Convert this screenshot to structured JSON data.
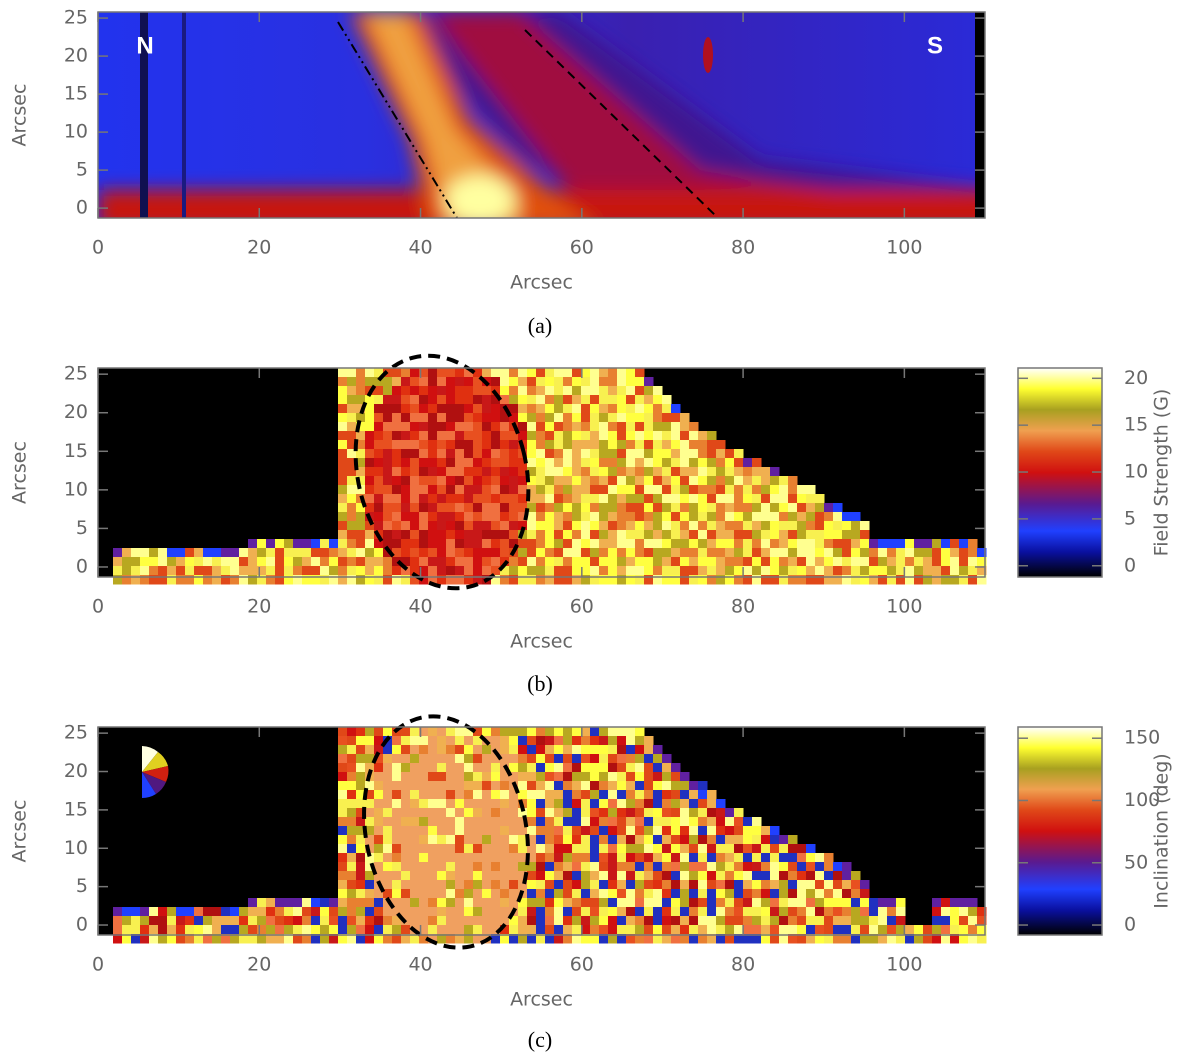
{
  "chart_data": [
    {
      "type": "heatmap",
      "caption": "(a)",
      "xlabel": "Arcsec",
      "ylabel": "Arcsec",
      "xlim": [
        0,
        110
      ],
      "xticks": [
        0,
        20,
        40,
        60,
        80,
        100
      ],
      "ylim": [
        -1.3,
        25.8
      ],
      "yticks": [
        0,
        5,
        10,
        15,
        20,
        25
      ],
      "annotations": [
        "N",
        "S"
      ]
    },
    {
      "type": "heatmap",
      "caption": "(b)",
      "xlabel": "Arcsec",
      "ylabel": "Arcsec",
      "xlim": [
        0,
        110
      ],
      "xticks": [
        0,
        20,
        40,
        60,
        80,
        100
      ],
      "ylim": [
        -1.3,
        25.8
      ],
      "yticks": [
        0,
        5,
        10,
        15,
        20,
        25
      ],
      "colorbar": {
        "label": "Field Strength (G)",
        "lim": [
          -1.2,
          21.1
        ],
        "ticks": [
          0,
          5,
          10,
          15,
          20
        ]
      }
    },
    {
      "type": "heatmap",
      "caption": "(c)",
      "xlabel": "Arcsec",
      "ylabel": "Arcsec",
      "xlim": [
        0,
        110
      ],
      "xticks": [
        0,
        20,
        40,
        60,
        80,
        100
      ],
      "ylim": [
        -1.3,
        25.8
      ],
      "yticks": [
        0,
        5,
        10,
        15,
        20,
        25
      ],
      "colorbar": {
        "label": "Inclination (deg)",
        "lim": [
          -8,
          159
        ],
        "ticks": [
          0,
          50,
          100,
          150
        ]
      }
    }
  ]
}
